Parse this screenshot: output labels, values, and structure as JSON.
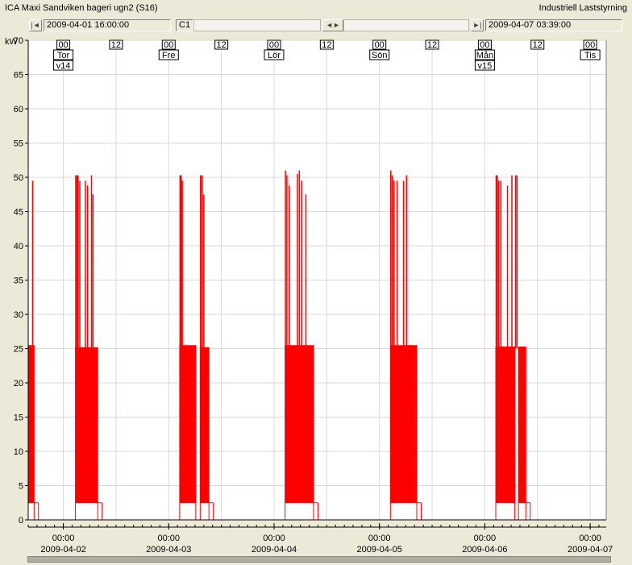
{
  "window": {
    "title": "ICA Maxi Sandviken bageri ugn2  (S16)",
    "brand": "Industriell Laststyrning"
  },
  "nav": {
    "start_label": "2009-04-01 16:00:00",
    "channel_label": "C1",
    "end_label": "2009-04-07 03:39:00",
    "first_icon": "skip-first-icon",
    "last_icon": "skip-last-icon",
    "pan_icon": "pan-left-right-icon"
  },
  "colors": {
    "series": "#ff0000",
    "grid": "#d9d9d9",
    "plot_bg": "#ffffff"
  },
  "chart_data": {
    "type": "area",
    "ylabel": "kW",
    "ylim": [
      0,
      70
    ],
    "yticks": [
      0,
      5,
      10,
      15,
      20,
      25,
      30,
      35,
      40,
      45,
      50,
      55,
      60,
      65,
      70
    ],
    "xlim": [
      "2009-04-01 16:00",
      "2009-04-07 03:39"
    ],
    "x_ticks": [
      {
        "time": "00:00",
        "date": "2009-04-02"
      },
      {
        "time": "00:00",
        "date": "2009-04-03"
      },
      {
        "time": "00:00",
        "date": "2009-04-04"
      },
      {
        "time": "00:00",
        "date": "2009-04-05"
      },
      {
        "time": "00:00",
        "date": "2009-04-06"
      },
      {
        "time": "00:00",
        "date": "2009-04-07"
      }
    ],
    "top_markers": [
      {
        "at": "2009-04-02 00:00",
        "hour": "00",
        "day": "Tor",
        "week": "v14"
      },
      {
        "at": "2009-04-02 12:00",
        "hour": "12"
      },
      {
        "at": "2009-04-03 00:00",
        "hour": "00",
        "day": "Fre"
      },
      {
        "at": "2009-04-03 12:00",
        "hour": "12"
      },
      {
        "at": "2009-04-04 00:00",
        "hour": "00",
        "day": "Lör"
      },
      {
        "at": "2009-04-04 12:00",
        "hour": "12"
      },
      {
        "at": "2009-04-05 00:00",
        "hour": "00",
        "day": "Sön"
      },
      {
        "at": "2009-04-05 12:00",
        "hour": "12"
      },
      {
        "at": "2009-04-06 00:00",
        "hour": "00",
        "day": "Mån",
        "week": "v15"
      },
      {
        "at": "2009-04-06 12:00",
        "hour": "12"
      },
      {
        "at": "2009-04-07 00:00",
        "hour": "00",
        "day": "Tis"
      }
    ],
    "series": [
      {
        "active_periods": [
          {
            "start": "2009-04-01 16:00",
            "end": "2009-04-01 17:20",
            "base": 2.5,
            "level": 25.5
          },
          {
            "start": "2009-04-01 17:20",
            "end": "2009-04-01 18:20",
            "base": 2.5,
            "level": 2.5
          },
          {
            "start": "2009-04-02 02:45",
            "end": "2009-04-02 07:50",
            "base": 2.5,
            "level": 25.2
          },
          {
            "start": "2009-04-02 07:50",
            "end": "2009-04-02 08:50",
            "base": 2.5,
            "level": 2.5
          },
          {
            "start": "2009-04-03 02:30",
            "end": "2009-04-03 06:10",
            "base": 2.5,
            "level": 25.5
          },
          {
            "start": "2009-04-03 07:10",
            "end": "2009-04-03 09:10",
            "base": 2.5,
            "level": 25.2
          },
          {
            "start": "2009-04-03 09:10",
            "end": "2009-04-03 10:10",
            "base": 2.5,
            "level": 2.5
          },
          {
            "start": "2009-04-04 02:30",
            "end": "2009-04-04 09:00",
            "base": 2.5,
            "level": 25.5
          },
          {
            "start": "2009-04-04 09:00",
            "end": "2009-04-04 10:00",
            "base": 2.5,
            "level": 2.5
          },
          {
            "start": "2009-04-05 02:30",
            "end": "2009-04-05 08:30",
            "base": 2.5,
            "level": 25.5
          },
          {
            "start": "2009-04-05 08:30",
            "end": "2009-04-05 09:30",
            "base": 2.5,
            "level": 2.5
          },
          {
            "start": "2009-04-06 02:30",
            "end": "2009-04-06 06:50",
            "base": 2.5,
            "level": 25.3
          },
          {
            "start": "2009-04-06 07:40",
            "end": "2009-04-06 09:20",
            "base": 2.5,
            "level": 25.3
          },
          {
            "start": "2009-04-06 09:20",
            "end": "2009-04-06 10:20",
            "base": 2.5,
            "level": 2.5
          }
        ],
        "peaks": [
          {
            "t": "2009-04-01 17:00",
            "kw": 49.5
          },
          {
            "t": "2009-04-02 02:50",
            "kw": 50.3
          },
          {
            "t": "2009-04-02 03:05",
            "kw": 50.3
          },
          {
            "t": "2009-04-02 03:20",
            "kw": 50.3
          },
          {
            "t": "2009-04-02 03:45",
            "kw": 49.5
          },
          {
            "t": "2009-04-02 05:00",
            "kw": 49.5
          },
          {
            "t": "2009-04-02 05:30",
            "kw": 48.8
          },
          {
            "t": "2009-04-02 06:25",
            "kw": 50.3
          },
          {
            "t": "2009-04-02 06:45",
            "kw": 47.5
          },
          {
            "t": "2009-04-03 02:35",
            "kw": 50.3
          },
          {
            "t": "2009-04-03 02:50",
            "kw": 50.3
          },
          {
            "t": "2009-04-03 03:05",
            "kw": 49.5
          },
          {
            "t": "2009-04-03 07:15",
            "kw": 50.3
          },
          {
            "t": "2009-04-03 07:35",
            "kw": 50.3
          },
          {
            "t": "2009-04-03 08:00",
            "kw": 47.5
          },
          {
            "t": "2009-04-04 02:35",
            "kw": 51.0
          },
          {
            "t": "2009-04-04 02:55",
            "kw": 50.3
          },
          {
            "t": "2009-04-04 03:30",
            "kw": 48.8
          },
          {
            "t": "2009-04-04 05:20",
            "kw": 50.5
          },
          {
            "t": "2009-04-04 05:45",
            "kw": 51.0
          },
          {
            "t": "2009-04-04 06:15",
            "kw": 49.5
          },
          {
            "t": "2009-04-04 07:15",
            "kw": 47.5
          },
          {
            "t": "2009-04-05 02:35",
            "kw": 51.0
          },
          {
            "t": "2009-04-05 02:55",
            "kw": 50.3
          },
          {
            "t": "2009-04-05 03:20",
            "kw": 49.5
          },
          {
            "t": "2009-04-05 04:00",
            "kw": 49.5
          },
          {
            "t": "2009-04-05 05:30",
            "kw": 49.5
          },
          {
            "t": "2009-04-05 06:10",
            "kw": 50.3
          },
          {
            "t": "2009-04-06 02:35",
            "kw": 50.3
          },
          {
            "t": "2009-04-06 02:50",
            "kw": 50.3
          },
          {
            "t": "2009-04-06 03:10",
            "kw": 49.5
          },
          {
            "t": "2009-04-06 03:40",
            "kw": 49.5
          },
          {
            "t": "2009-04-06 05:10",
            "kw": 48.8
          },
          {
            "t": "2009-04-06 06:10",
            "kw": 50.3
          },
          {
            "t": "2009-04-06 07:00",
            "kw": 50.3
          },
          {
            "t": "2009-04-06 07:20",
            "kw": 50.3
          }
        ]
      }
    ]
  }
}
